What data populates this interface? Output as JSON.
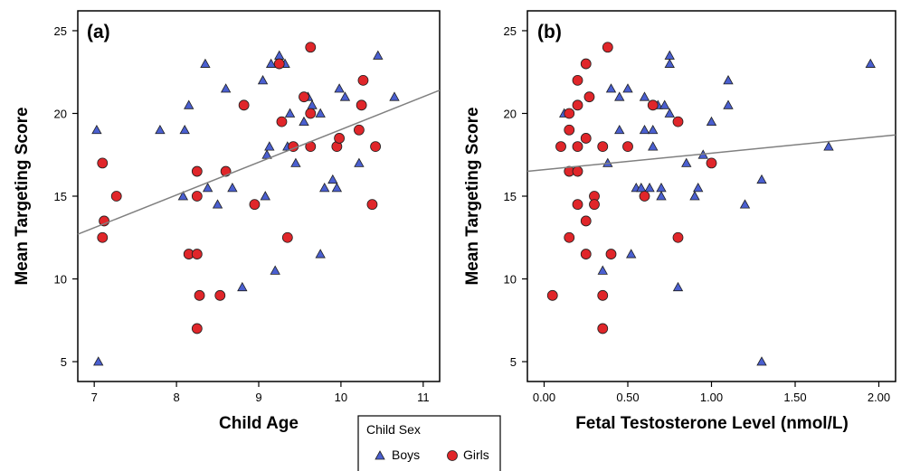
{
  "colors": {
    "boys": "#4a5fd0",
    "girls": "#e0262a",
    "fit_line": "#808080",
    "axis": "#000000",
    "marker_edge": "#1f1f1f"
  },
  "legend": {
    "title": "Child Sex",
    "items": [
      {
        "label": "Boys",
        "marker": "triangle",
        "color": "#4a5fd0"
      },
      {
        "label": "Girls",
        "marker": "circle",
        "color": "#e0262a"
      }
    ],
    "placement": "bottom-center"
  },
  "chart_data": [
    {
      "type": "scatter",
      "panel_label": "(a)",
      "xlabel": "Child Age",
      "ylabel": "Mean Targeting Score",
      "xlim": [
        6.8,
        11.2
      ],
      "ylim": [
        3.8,
        26.2
      ],
      "xticks": [
        7,
        8,
        9,
        10,
        11
      ],
      "xtick_labels": [
        "7",
        "8",
        "9",
        "10",
        "11"
      ],
      "yticks": [
        5,
        10,
        15,
        20,
        25
      ],
      "ytick_labels": [
        "5",
        "10",
        "15",
        "20",
        "25"
      ],
      "grid": false,
      "fit_line": {
        "x": [
          6.8,
          11.2
        ],
        "y": [
          12.7,
          21.4
        ]
      },
      "series": [
        {
          "name": "Boys",
          "marker": "triangle",
          "points": [
            [
              7.03,
              19.0
            ],
            [
              7.05,
              5.0
            ],
            [
              7.8,
              19.0
            ],
            [
              8.08,
              15.0
            ],
            [
              8.1,
              19.0
            ],
            [
              8.15,
              20.5
            ],
            [
              8.35,
              23.0
            ],
            [
              8.38,
              15.5
            ],
            [
              8.5,
              14.5
            ],
            [
              8.6,
              21.5
            ],
            [
              8.68,
              15.5
            ],
            [
              8.8,
              9.5
            ],
            [
              9.05,
              22.0
            ],
            [
              9.08,
              15.0
            ],
            [
              9.1,
              17.5
            ],
            [
              9.13,
              18.0
            ],
            [
              9.15,
              23.0
            ],
            [
              9.2,
              10.5
            ],
            [
              9.25,
              23.5
            ],
            [
              9.32,
              23.0
            ],
            [
              9.35,
              18.0
            ],
            [
              9.38,
              20.0
            ],
            [
              9.45,
              17.0
            ],
            [
              9.55,
              19.5
            ],
            [
              9.6,
              21.0
            ],
            [
              9.65,
              20.5
            ],
            [
              9.75,
              20.0
            ],
            [
              9.75,
              11.5
            ],
            [
              9.8,
              15.5
            ],
            [
              9.9,
              16.0
            ],
            [
              9.95,
              15.5
            ],
            [
              9.98,
              21.5
            ],
            [
              10.05,
              21.0
            ],
            [
              10.22,
              17.0
            ],
            [
              10.45,
              23.5
            ],
            [
              10.65,
              21.0
            ]
          ]
        },
        {
          "name": "Girls",
          "marker": "circle",
          "points": [
            [
              7.1,
              17.0
            ],
            [
              7.12,
              13.5
            ],
            [
              7.1,
              12.5
            ],
            [
              7.27,
              15.0
            ],
            [
              8.15,
              11.5
            ],
            [
              8.25,
              11.5
            ],
            [
              8.25,
              16.5
            ],
            [
              8.25,
              15.0
            ],
            [
              8.25,
              7.0
            ],
            [
              8.28,
              9.0
            ],
            [
              8.53,
              9.0
            ],
            [
              8.6,
              16.5
            ],
            [
              8.82,
              20.5
            ],
            [
              8.95,
              14.5
            ],
            [
              9.25,
              23.0
            ],
            [
              9.28,
              19.5
            ],
            [
              9.35,
              12.5
            ],
            [
              9.42,
              18.0
            ],
            [
              9.55,
              21.0
            ],
            [
              9.63,
              24.0
            ],
            [
              9.63,
              18.0
            ],
            [
              9.63,
              20.0
            ],
            [
              9.95,
              18.0
            ],
            [
              9.98,
              18.5
            ],
            [
              10.22,
              19.0
            ],
            [
              10.25,
              20.5
            ],
            [
              10.27,
              22.0
            ],
            [
              10.38,
              14.5
            ],
            [
              10.42,
              18.0
            ]
          ]
        }
      ]
    },
    {
      "type": "scatter",
      "panel_label": "(b)",
      "xlabel": "Fetal Testosterone Level (nmol/L)",
      "ylabel": "Mean Targeting Score",
      "xlim": [
        -0.1,
        2.1
      ],
      "ylim": [
        3.8,
        26.2
      ],
      "xticks": [
        0.0,
        0.5,
        1.0,
        1.5,
        2.0
      ],
      "xtick_labels": [
        "0.00",
        "0.50",
        "1.00",
        "1.50",
        "2.00"
      ],
      "yticks": [
        5,
        10,
        15,
        20,
        25
      ],
      "ytick_labels": [
        "5",
        "10",
        "15",
        "20",
        "25"
      ],
      "grid": false,
      "fit_line": {
        "x": [
          -0.1,
          2.1
        ],
        "y": [
          16.5,
          18.7
        ]
      },
      "series": [
        {
          "name": "Boys",
          "marker": "triangle",
          "points": [
            [
              0.12,
              20.0
            ],
            [
              0.35,
              10.5
            ],
            [
              0.38,
              17.0
            ],
            [
              0.4,
              21.5
            ],
            [
              0.45,
              19.0
            ],
            [
              0.45,
              21.0
            ],
            [
              0.5,
              21.5
            ],
            [
              0.52,
              11.5
            ],
            [
              0.55,
              15.5
            ],
            [
              0.58,
              15.5
            ],
            [
              0.6,
              19.0
            ],
            [
              0.6,
              21.0
            ],
            [
              0.63,
              15.5
            ],
            [
              0.65,
              18.0
            ],
            [
              0.65,
              19.0
            ],
            [
              0.68,
              20.5
            ],
            [
              0.7,
              15.5
            ],
            [
              0.7,
              15.0
            ],
            [
              0.72,
              20.5
            ],
            [
              0.75,
              23.5
            ],
            [
              0.75,
              23.0
            ],
            [
              0.75,
              20.0
            ],
            [
              0.8,
              9.5
            ],
            [
              0.85,
              17.0
            ],
            [
              0.9,
              15.0
            ],
            [
              0.92,
              15.5
            ],
            [
              0.95,
              17.5
            ],
            [
              1.0,
              19.5
            ],
            [
              1.1,
              22.0
            ],
            [
              1.1,
              20.5
            ],
            [
              1.2,
              14.5
            ],
            [
              1.3,
              16.0
            ],
            [
              1.3,
              5.0
            ],
            [
              1.7,
              18.0
            ],
            [
              1.95,
              23.0
            ]
          ]
        },
        {
          "name": "Girls",
          "marker": "circle",
          "points": [
            [
              0.05,
              9.0
            ],
            [
              0.1,
              18.0
            ],
            [
              0.15,
              20.0
            ],
            [
              0.15,
              19.0
            ],
            [
              0.15,
              16.5
            ],
            [
              0.15,
              12.5
            ],
            [
              0.2,
              22.0
            ],
            [
              0.2,
              20.5
            ],
            [
              0.2,
              18.0
            ],
            [
              0.2,
              16.5
            ],
            [
              0.2,
              14.5
            ],
            [
              0.25,
              23.0
            ],
            [
              0.25,
              18.5
            ],
            [
              0.25,
              13.5
            ],
            [
              0.25,
              11.5
            ],
            [
              0.27,
              21.0
            ],
            [
              0.3,
              15.0
            ],
            [
              0.3,
              14.5
            ],
            [
              0.35,
              18.0
            ],
            [
              0.35,
              9.0
            ],
            [
              0.35,
              7.0
            ],
            [
              0.38,
              24.0
            ],
            [
              0.4,
              11.5
            ],
            [
              0.5,
              18.0
            ],
            [
              0.6,
              15.0
            ],
            [
              0.65,
              20.5
            ],
            [
              0.8,
              19.5
            ],
            [
              0.8,
              12.5
            ],
            [
              1.0,
              17.0
            ]
          ]
        }
      ]
    }
  ]
}
